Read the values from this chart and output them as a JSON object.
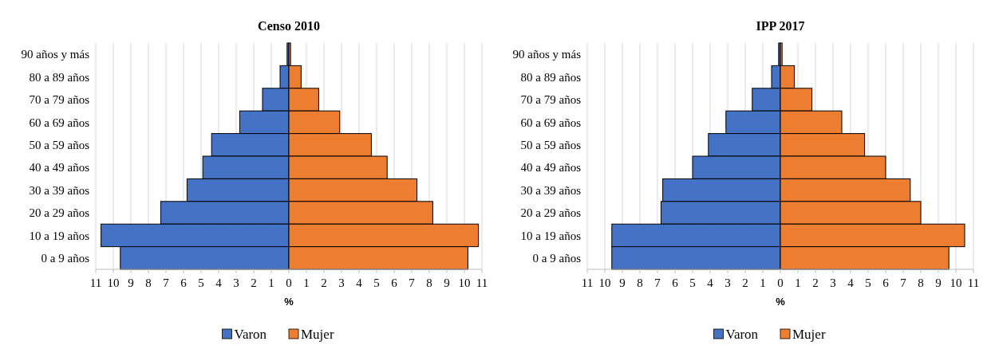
{
  "chart_data": [
    {
      "type": "bar",
      "title": "Censo 2010",
      "xlabel": "%",
      "orientation": "horizontal",
      "stacked": true,
      "grid": "x",
      "legend": "bottom",
      "categories": [
        "90 años y más",
        "80 a 89 años",
        "70 a 79 años",
        "60 a 69 años",
        "50 a 59 años",
        "40 a 49 años",
        "30 a 39 años",
        "20 a 29 años",
        "10 a 19 años",
        "0 a 9 años"
      ],
      "series": [
        {
          "name": "Varon",
          "color": "#4472c4",
          "values": [
            -0.1,
            -0.5,
            -1.5,
            -2.8,
            -4.4,
            -4.9,
            -5.8,
            -7.3,
            -10.7,
            -9.6
          ]
        },
        {
          "name": "Mujer",
          "color": "#ed7d31",
          "values": [
            0.1,
            0.7,
            1.7,
            2.9,
            4.7,
            5.6,
            7.3,
            8.2,
            10.8,
            10.2
          ]
        }
      ],
      "xlim": [
        -11,
        11
      ],
      "xticks": [
        {
          "value": -11,
          "label": "11"
        },
        {
          "value": -10,
          "label": "10"
        },
        {
          "value": -9,
          "label": "9"
        },
        {
          "value": -8,
          "label": "8"
        },
        {
          "value": -7,
          "label": "7"
        },
        {
          "value": -6,
          "label": "6"
        },
        {
          "value": -5,
          "label": "5"
        },
        {
          "value": -4,
          "label": "4"
        },
        {
          "value": -3,
          "label": "3"
        },
        {
          "value": -2,
          "label": "2"
        },
        {
          "value": -1,
          "label": "1"
        },
        0,
        1,
        2,
        3,
        4,
        5,
        6,
        7,
        8,
        9,
        10,
        11
      ]
    },
    {
      "type": "bar",
      "title": "IPP 2017",
      "xlabel": "%",
      "orientation": "horizontal",
      "stacked": true,
      "grid": "x",
      "legend": "bottom",
      "categories": [
        "90 años y más",
        "80 a 89 años",
        "70 a 79 años",
        "60 a 69 años",
        "50 a 59 años",
        "40 a 49 años",
        "30 a 39 años",
        "20 a 29 años",
        "10 a 19 años",
        "0 a 9 años"
      ],
      "series": [
        {
          "name": "Varon",
          "color": "#4472c4",
          "values": [
            -0.1,
            -0.5,
            -1.6,
            -3.1,
            -4.1,
            -5.0,
            -6.7,
            -6.8,
            -9.6,
            -9.6
          ]
        },
        {
          "name": "Mujer",
          "color": "#ed7d31",
          "values": [
            0.1,
            0.8,
            1.8,
            3.5,
            4.8,
            6.0,
            7.4,
            8.0,
            10.5,
            9.6
          ]
        }
      ],
      "xlim": [
        -11,
        11
      ],
      "xticks": [
        {
          "value": -11,
          "label": "11"
        },
        {
          "value": -10,
          "label": "10"
        },
        {
          "value": -9,
          "label": "9"
        },
        {
          "value": -8,
          "label": "8"
        },
        {
          "value": -7,
          "label": "7"
        },
        {
          "value": -6,
          "label": "6"
        },
        {
          "value": -5,
          "label": "5"
        },
        {
          "value": -4,
          "label": "4"
        },
        {
          "value": -3,
          "label": "3"
        },
        {
          "value": -2,
          "label": "2"
        },
        {
          "value": -1,
          "label": "1"
        },
        0,
        1,
        2,
        3,
        4,
        5,
        6,
        7,
        8,
        9,
        10,
        11
      ]
    }
  ]
}
